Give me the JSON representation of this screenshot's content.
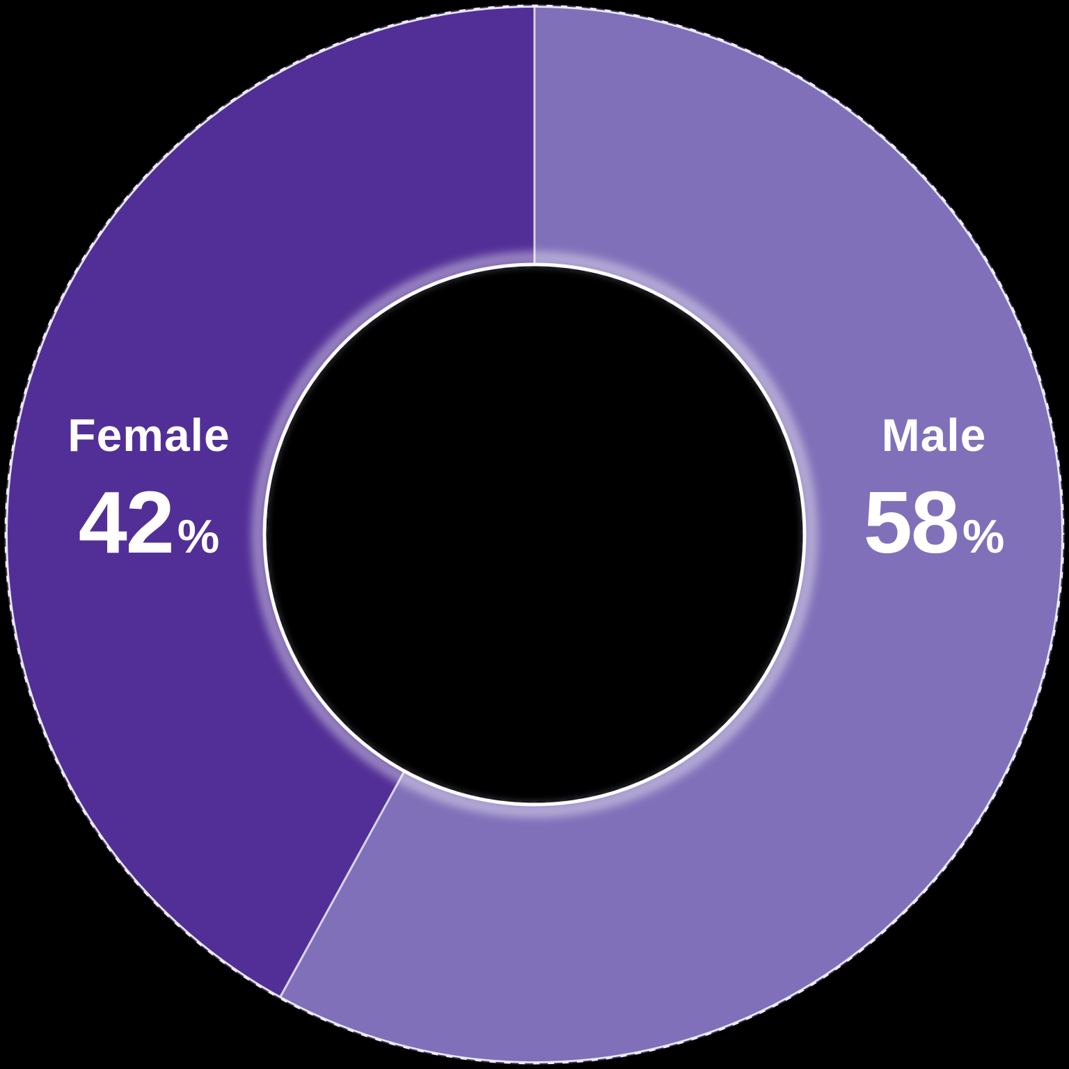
{
  "chart_data": {
    "type": "pie",
    "subtype": "donut",
    "categories": [
      "Male",
      "Female"
    ],
    "values": [
      58,
      42
    ],
    "unit": "%",
    "colors": [
      "#8070b9",
      "#522f96"
    ],
    "start_angle_deg": 0,
    "direction": "clockwise",
    "inner_radius_ratio": 0.51,
    "legend_position": "none",
    "data_labels_position": "inside-slices",
    "grid": false,
    "title": ""
  },
  "colors": {
    "background": "#000000",
    "male_slice": "#8070b9",
    "female_slice": "#522f96",
    "slice_divider": "#d9d3ee",
    "outer_edge": "#efecf8",
    "inner_edge_glow": "#ffffff",
    "edge_dash": "#10102d",
    "label_text": "#ffffff"
  }
}
